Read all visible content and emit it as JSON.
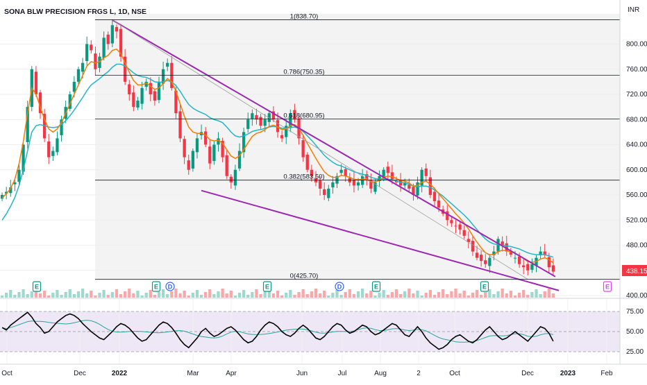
{
  "chart_data": {
    "type": "candlestick",
    "title": "SONA BLW PRECISION FRGS L, 1D, NSE",
    "currency": "INR",
    "current_price": "438.15",
    "price_range": [
      400,
      848
    ],
    "y_ticks": [
      "800.00",
      "760.00",
      "720.00",
      "680.00",
      "640.00",
      "600.00",
      "560.00",
      "520.00",
      "480.00",
      "440.00",
      "400.00"
    ],
    "x_ticks": [
      "Oct",
      "Dec",
      "2022",
      "Mar",
      "Apr",
      "Jun",
      "Jul",
      "Aug",
      "2",
      "Oct",
      "Dec",
      "2023",
      "Feb"
    ],
    "fib_levels": [
      {
        "ratio": 1,
        "price": 838.7,
        "label": "1(838.70)"
      },
      {
        "ratio": 0.786,
        "price": 750.35,
        "label": "0.786(750.35)"
      },
      {
        "ratio": 0.618,
        "price": 680.95,
        "label": "0.618(680.95)"
      },
      {
        "ratio": 0.382,
        "price": 583.5,
        "label": "0.382(583.50)"
      },
      {
        "ratio": 0,
        "price": 425.7,
        "label": "0(425.70)"
      }
    ],
    "candles_close": [
      560,
      565,
      572,
      580,
      600,
      640,
      700,
      760,
      720,
      690,
      650,
      620,
      630,
      650,
      680,
      700,
      720,
      740,
      760,
      770,
      800,
      790,
      760,
      780,
      810,
      800,
      830,
      820,
      780,
      740,
      720,
      700,
      710,
      730,
      740,
      720,
      710,
      740,
      760,
      770,
      730,
      690,
      650,
      620,
      600,
      630,
      650,
      660,
      640,
      610,
      640,
      650,
      620,
      590,
      580,
      600,
      630,
      660,
      680,
      690,
      680,
      670,
      680,
      690,
      680,
      660,
      650,
      670,
      690,
      680,
      650,
      620,
      600,
      590,
      580,
      570,
      560,
      570,
      580,
      590,
      600,
      590,
      580,
      575,
      580,
      590,
      585,
      570,
      580,
      590,
      600,
      595,
      585,
      580,
      575,
      580,
      570,
      560,
      580,
      600,
      590,
      560,
      550,
      540,
      530,
      520,
      515,
      510,
      505,
      495,
      485,
      470,
      460,
      455,
      450,
      460,
      470,
      490,
      480,
      470,
      465,
      460,
      450,
      445,
      440,
      450,
      460,
      470,
      465,
      445,
      438
    ],
    "ema_fast": [
      555,
      562,
      570,
      585,
      610,
      645,
      690,
      730,
      720,
      700,
      680,
      665,
      660,
      665,
      675,
      690,
      705,
      720,
      735,
      750,
      765,
      772,
      770,
      772,
      778,
      782,
      790,
      792,
      785,
      770,
      755,
      742,
      735,
      735,
      738,
      733,
      728,
      730,
      737,
      745,
      740,
      725,
      705,
      685,
      668,
      660,
      658,
      658,
      655,
      648,
      646,
      647,
      642,
      632,
      622,
      618,
      622,
      632,
      643,
      653,
      658,
      660,
      664,
      669,
      671,
      668,
      664,
      665,
      670,
      672,
      666,
      655,
      642,
      630,
      618,
      607,
      597,
      591,
      588,
      588,
      591,
      590,
      588,
      585,
      584,
      585,
      585,
      581,
      581,
      583,
      588,
      590,
      589,
      586,
      583,
      582,
      579,
      574,
      575,
      580,
      582,
      577,
      570,
      562,
      554,
      546,
      538,
      530,
      523,
      515,
      506,
      495,
      485,
      476,
      468,
      465,
      465,
      470,
      472,
      471,
      470,
      467,
      463,
      459,
      454,
      453,
      454,
      458,
      460,
      457,
      452
    ],
    "ema_slow": [
      520,
      530,
      542,
      556,
      575,
      600,
      630,
      660,
      670,
      672,
      670,
      668,
      667,
      668,
      672,
      678,
      686,
      695,
      705,
      715,
      726,
      735,
      740,
      745,
      751,
      756,
      763,
      768,
      768,
      765,
      760,
      754,
      750,
      748,
      747,
      744,
      740,
      739,
      740,
      742,
      740,
      734,
      725,
      714,
      704,
      698,
      694,
      691,
      688,
      683,
      680,
      678,
      675,
      668,
      660,
      654,
      652,
      654,
      657,
      661,
      663,
      664,
      666,
      668,
      669,
      668,
      666,
      666,
      667,
      668,
      666,
      661,
      654,
      647,
      639,
      631,
      623,
      617,
      612,
      608,
      606,
      603,
      600,
      597,
      595,
      593,
      591,
      588,
      586,
      585,
      585,
      585,
      584,
      582,
      580,
      579,
      577,
      574,
      573,
      574,
      574,
      572,
      568,
      563,
      558,
      552,
      546,
      540,
      534,
      528,
      521,
      513,
      505,
      497,
      490,
      485,
      482,
      481,
      480,
      479,
      478,
      476,
      474,
      471,
      468,
      466,
      465,
      465,
      465,
      463,
      461
    ],
    "rsi": [
      55,
      52,
      58,
      62,
      66,
      70,
      74,
      68,
      60,
      55,
      48,
      50,
      56,
      62,
      66,
      70,
      72,
      70,
      66,
      60,
      55,
      50,
      46,
      42,
      40,
      45,
      50,
      56,
      60,
      58,
      54,
      48,
      42,
      38,
      40,
      46,
      52,
      58,
      62,
      60,
      55,
      48,
      40,
      34,
      30,
      36,
      42,
      50,
      54,
      48,
      44,
      46,
      50,
      54,
      56,
      52,
      46,
      40,
      36,
      38,
      44,
      52,
      58,
      62,
      60,
      56,
      50,
      46,
      44,
      48,
      54,
      58,
      54,
      48,
      42,
      40,
      44,
      50,
      56,
      60,
      58,
      52,
      48,
      50,
      54,
      58,
      56,
      50,
      46,
      48,
      52,
      56,
      60,
      58,
      52,
      46,
      44,
      50,
      56,
      50,
      42,
      36,
      32,
      28,
      30,
      34,
      40,
      44,
      46,
      42,
      38,
      36,
      40,
      46,
      52,
      56,
      50,
      44,
      40,
      42,
      46,
      50,
      46,
      42,
      38,
      44,
      50,
      56,
      54,
      48,
      38
    ],
    "rsi_ticks": [
      "75.00",
      "50.00",
      "25.00"
    ],
    "event_badges": [
      {
        "label": "E"
      },
      {
        "label": "E"
      },
      {
        "label": "D"
      },
      {
        "label": "E"
      },
      {
        "label": "D"
      },
      {
        "label": "E"
      },
      {
        "label": "E"
      },
      {
        "label": "E"
      }
    ],
    "colors": {
      "up": "#089981",
      "down": "#f23645",
      "ema_fast": "#f57c00",
      "ema_slow": "#22b5c8",
      "trend": "#9c27b0",
      "rsi": "#000000",
      "rsi_signal": "#26a69a",
      "price_tag": "#f23645"
    }
  }
}
